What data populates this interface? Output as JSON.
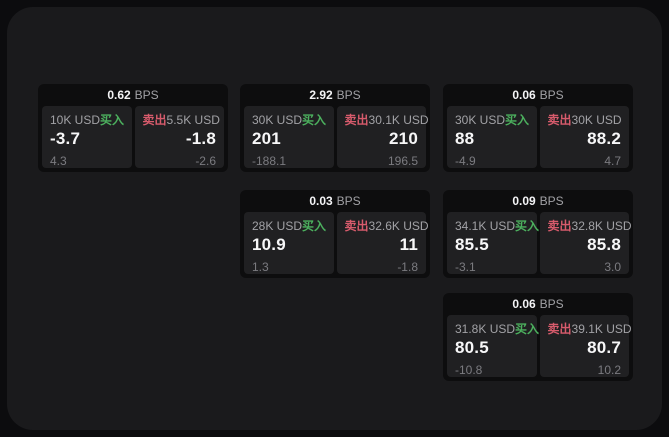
{
  "colors": {
    "buy_green": "#4cb05e",
    "sell_red": "#d75b6c",
    "window_bg": "#1a1a1c",
    "card_bg": "#0d0d0e",
    "panel_bg": "#202022",
    "label_gray": "#a2a2a6",
    "sub_gray": "#7b7b80"
  },
  "cards": [
    {
      "bps": "0.62",
      "bps_unit": "BPS",
      "buy": {
        "side": "买入",
        "size": "10K USD",
        "price": "-3.7",
        "change": "4.3"
      },
      "sell": {
        "side": "卖出",
        "size": "5.5K USD",
        "price": "-1.8",
        "change": "-2.6"
      }
    },
    {
      "bps": "2.92",
      "bps_unit": "BPS",
      "buy": {
        "side": "买入",
        "size": "30K USD",
        "price": "201",
        "change": "-188.1"
      },
      "sell": {
        "side": "卖出",
        "size": "30.1K USD",
        "price": "210",
        "change": "196.5"
      }
    },
    {
      "bps": "0.06",
      "bps_unit": "BPS",
      "buy": {
        "side": "买入",
        "size": "30K USD",
        "price": "88",
        "change": "-4.9"
      },
      "sell": {
        "side": "卖出",
        "size": "30K USD",
        "price": "88.2",
        "change": "4.7"
      }
    },
    {
      "bps": "0.03",
      "bps_unit": "BPS",
      "buy": {
        "side": "买入",
        "size": "28K USD",
        "price": "10.9",
        "change": "1.3"
      },
      "sell": {
        "side": "卖出",
        "size": "32.6K USD",
        "price": "11",
        "change": "-1.8"
      }
    },
    {
      "bps": "0.09",
      "bps_unit": "BPS",
      "buy": {
        "side": "买入",
        "size": "34.1K USD",
        "price": "85.5",
        "change": "-3.1"
      },
      "sell": {
        "side": "卖出",
        "size": "32.8K USD",
        "price": "85.8",
        "change": "3.0"
      }
    },
    {
      "bps": "0.06",
      "bps_unit": "BPS",
      "buy": {
        "side": "买入",
        "size": "31.8K USD",
        "price": "80.5",
        "change": "-10.8"
      },
      "sell": {
        "side": "卖出",
        "size": "39.1K USD",
        "price": "80.7",
        "change": "10.2"
      }
    }
  ]
}
